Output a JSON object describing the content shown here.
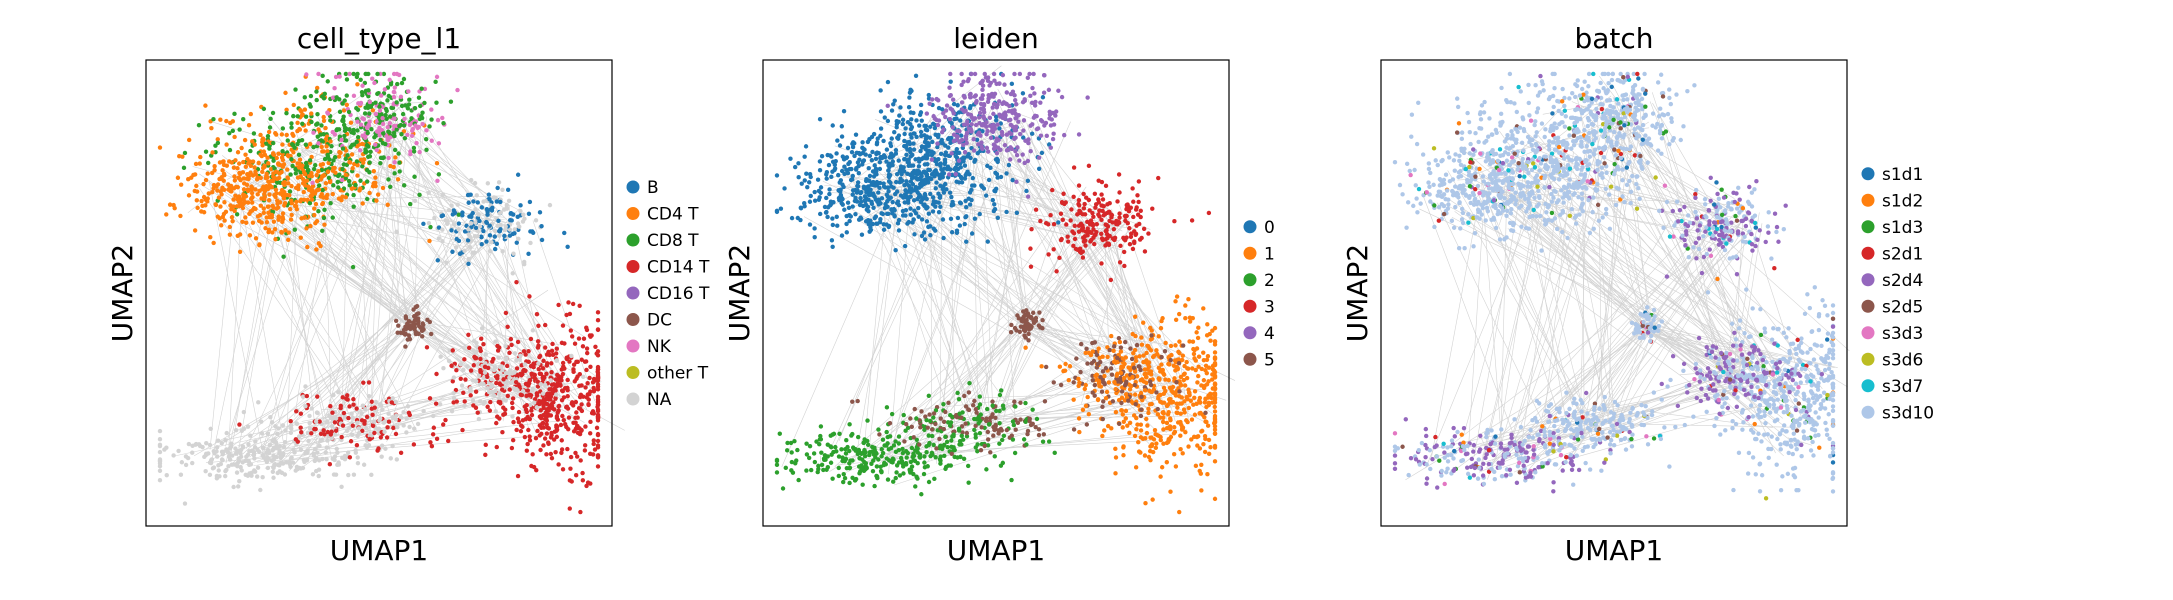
{
  "chart_data": [
    {
      "type": "scatter",
      "title": "cell_type_l1",
      "xlabel": "UMAP1",
      "ylabel": "UMAP2",
      "ticks": false,
      "grid": false,
      "legend_placement": "right",
      "legend": [
        {
          "label": "B",
          "color": "#1f77b4"
        },
        {
          "label": "CD4 T",
          "color": "#ff7f0e"
        },
        {
          "label": "CD8 T",
          "color": "#2ca02c"
        },
        {
          "label": "CD14 T",
          "color": "#d62728"
        },
        {
          "label": "CD16 T",
          "color": "#9467bd"
        },
        {
          "label": "DC",
          "color": "#8c564b"
        },
        {
          "label": "NK",
          "color": "#e377c2"
        },
        {
          "label": "other T",
          "color": "#bcbd22"
        },
        {
          "label": "NA",
          "color": "#d3d3d3"
        }
      ]
    },
    {
      "type": "scatter",
      "title": "leiden",
      "xlabel": "UMAP1",
      "ylabel": "UMAP2",
      "ticks": false,
      "grid": false,
      "legend_placement": "right",
      "legend": [
        {
          "label": "0",
          "color": "#1f77b4"
        },
        {
          "label": "1",
          "color": "#ff7f0e"
        },
        {
          "label": "2",
          "color": "#2ca02c"
        },
        {
          "label": "3",
          "color": "#d62728"
        },
        {
          "label": "4",
          "color": "#9467bd"
        },
        {
          "label": "5",
          "color": "#8c564b"
        }
      ]
    },
    {
      "type": "scatter",
      "title": "batch",
      "xlabel": "UMAP1",
      "ylabel": "UMAP2",
      "ticks": false,
      "grid": false,
      "legend_placement": "right",
      "legend": [
        {
          "label": "s1d1",
          "color": "#1f77b4"
        },
        {
          "label": "s1d2",
          "color": "#ff7f0e"
        },
        {
          "label": "s1d3",
          "color": "#2ca02c"
        },
        {
          "label": "s2d1",
          "color": "#d62728"
        },
        {
          "label": "s2d4",
          "color": "#9467bd"
        },
        {
          "label": "s2d5",
          "color": "#8c564b"
        },
        {
          "label": "s3d3",
          "color": "#e377c2"
        },
        {
          "label": "s3d6",
          "color": "#bcbd22"
        },
        {
          "label": "s3d7",
          "color": "#17becf"
        },
        {
          "label": "s3d10",
          "color": "#aec7e8"
        }
      ]
    }
  ],
  "edge_color": "#808080"
}
